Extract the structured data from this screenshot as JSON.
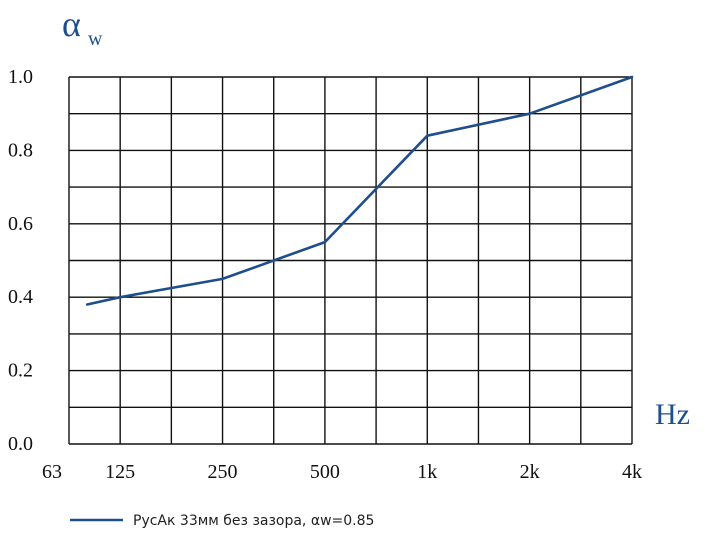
{
  "colors": {
    "series": "#1f4e8c",
    "grid": "#111111",
    "axis_label": "#1f4e8c"
  },
  "chart_data": {
    "type": "line",
    "ylabel": "α",
    "ylabel_sub": "w",
    "xlabel": "Hz",
    "x_ticks": [
      "63",
      "125",
      "250",
      "500",
      "1k",
      "2k",
      "4k"
    ],
    "y_ticks": [
      "1.0",
      "0.8",
      "0.6",
      "0.4",
      "0.2",
      "0.0"
    ],
    "ylim": [
      0,
      1
    ],
    "x_scale": "octave",
    "grid": true,
    "legend_position": "bottom-left",
    "series": [
      {
        "name": "РусАк 33мм без зазора, αw=0.85",
        "points": [
          {
            "x": "100",
            "y": 0.38
          },
          {
            "x": "125",
            "y": 0.4
          },
          {
            "x": "250",
            "y": 0.45
          },
          {
            "x": "500",
            "y": 0.55
          },
          {
            "x": "1k",
            "y": 0.84
          },
          {
            "x": "2k",
            "y": 0.9
          },
          {
            "x": "4k",
            "y": 1.0
          }
        ]
      }
    ]
  }
}
